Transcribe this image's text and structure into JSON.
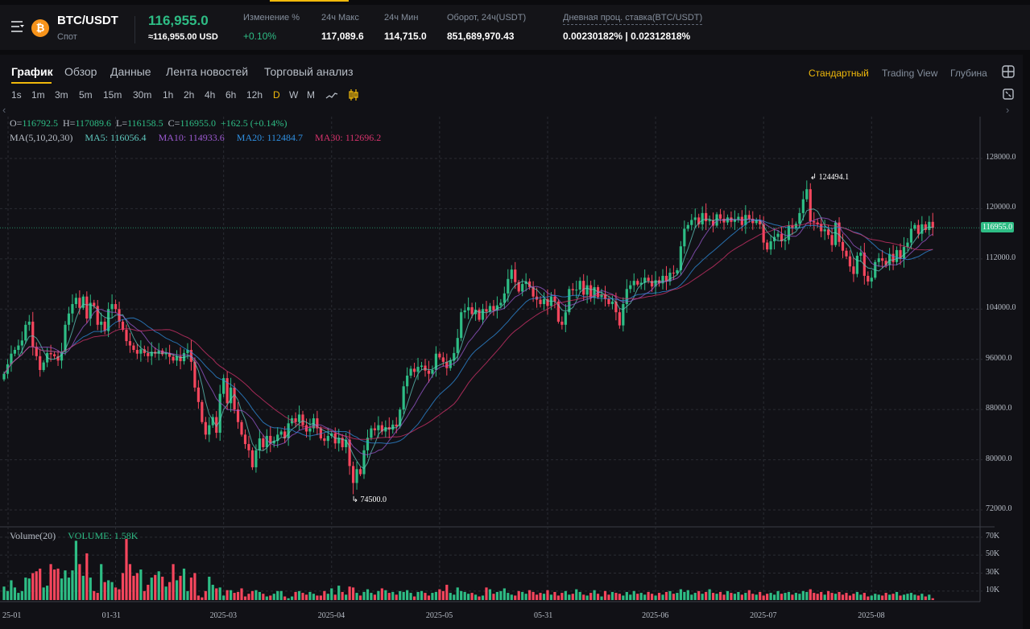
{
  "header": {
    "pair": "BTC/USDT",
    "market": "Спот",
    "last_price": "116,955.0",
    "last_price_usd": "≈116,955.00 USD",
    "stats": [
      {
        "label": "Изменение %",
        "value": "+0.10%",
        "positive": true
      },
      {
        "label": "24ч Макс",
        "value": "117,089.6"
      },
      {
        "label": "24ч Мин",
        "value": "114,715.0"
      },
      {
        "label": "Оборот, 24ч(USDT)",
        "value": "851,689,970.43"
      },
      {
        "label": "Дневная проц. ставка(BTC/USDT)",
        "value": "0.00230182% | 0.02312818%"
      }
    ]
  },
  "tabs": [
    "График",
    "Обзор",
    "Данные",
    "Лента новостей",
    "Торговый анализ"
  ],
  "active_tab": "График",
  "views": [
    "Стандартный",
    "Trading View",
    "Глубина"
  ],
  "active_view": "Стандартный",
  "timeframes": [
    "1s",
    "1m",
    "3m",
    "5m",
    "15m",
    "30m",
    "1h",
    "2h",
    "4h",
    "6h",
    "12h",
    "D",
    "W",
    "M"
  ],
  "active_timeframe": "D",
  "legend": {
    "ohlc": {
      "O": "116792.5",
      "H": "117089.6",
      "L": "116158.5",
      "C": "116955.0",
      "change": "+162.5 (+0.14%)"
    },
    "ma_title": "MA(5,10,20,30)",
    "ma": [
      {
        "label": "MA5: 116056.4",
        "color": "#5fc9bf"
      },
      {
        "label": "MA10: 114933.6",
        "color": "#9b59d0"
      },
      {
        "label": "MA20: 112484.7",
        "color": "#2f8fe0"
      },
      {
        "label": "MA30: 112696.2",
        "color": "#d6336c"
      }
    ],
    "volume_title": "Volume(20)",
    "volume_value": "VOLUME: 1.58K"
  },
  "chart_data": {
    "type": "candlestick",
    "price_ticks": [
      "128000.0",
      "120000.0",
      "112000.0",
      "104000.0",
      "96000.0",
      "88000.0",
      "80000.0",
      "72000.0"
    ],
    "ylim": [
      72000,
      128000
    ],
    "volume_ticks": [
      "70K",
      "50K",
      "30K",
      "10K"
    ],
    "x_labels": [
      "25-01",
      "01-31",
      "2025-03",
      "2025-04",
      "2025-05",
      "05-31",
      "2025-06",
      "2025-07",
      "2025-08"
    ],
    "current_price": "116955.0",
    "max_label": "124494.1",
    "min_label": "74500.0",
    "max_index": 223,
    "min_index": 97,
    "up_color": "#2ebd85",
    "down_color": "#f6465d",
    "closes_k": [
      93.7,
      95.2,
      96.9,
      97.5,
      98.2,
      99.0,
      101.5,
      102.0,
      98.0,
      96.5,
      94.3,
      95.5,
      97.0,
      96.8,
      96.5,
      95.8,
      97.2,
      101.5,
      103.3,
      104.8,
      105.8,
      104.2,
      106.0,
      102.5,
      105.0,
      104.5,
      101.5,
      102.0,
      100.5,
      104.0,
      104.8,
      104.0,
      102.0,
      100.7,
      98.9,
      98.2,
      97.5,
      96.9,
      97.6,
      97.0,
      96.5,
      97.2,
      96.9,
      97.4,
      96.8,
      97.0,
      96.4,
      95.8,
      96.5,
      95.7,
      97.0,
      97.5,
      95.6,
      91.5,
      89.2,
      86.0,
      84.0,
      85.5,
      86.8,
      84.3,
      90.5,
      93.0,
      89.0,
      91.5,
      88.0,
      86.0,
      84.0,
      82.5,
      81.5,
      78.8,
      81.5,
      83.4,
      82.0,
      83.8,
      82.6,
      83.0,
      84.0,
      84.5,
      83.4,
      85.8,
      86.6,
      86.0,
      87.2,
      85.5,
      84.5,
      85.0,
      86.6,
      85.0,
      83.4,
      83.0,
      83.8,
      84.2,
      82.6,
      83.5,
      82.0,
      83.2,
      79.0,
      76.3,
      78.5,
      77.7,
      81.5,
      83.5,
      85.0,
      84.7,
      85.5,
      84.5,
      85.2,
      84.8,
      85.6,
      85.3,
      88.0,
      91.7,
      93.4,
      94.5,
      94.0,
      94.8,
      95.0,
      94.2,
      93.7,
      94.3,
      96.9,
      96.3,
      95.6,
      94.6,
      95.8,
      97.0,
      99.4,
      103.5,
      103.8,
      104.3,
      103.2,
      103.9,
      102.3,
      104.0,
      103.6,
      104.5,
      103.8,
      104.6,
      105.0,
      106.5,
      108.8,
      110.3,
      108.3,
      106.8,
      108.0,
      108.4,
      107.5,
      106.0,
      105.5,
      104.8,
      105.6,
      104.5,
      106.0,
      105.2,
      102.0,
      101.5,
      103.5,
      107.2,
      107.0,
      107.1,
      108.5,
      106.3,
      107.8,
      105.8,
      107.5,
      105.9,
      106.4,
      105.6,
      104.8,
      105.2,
      103.5,
      101.4,
      104.8,
      107.2,
      107.8,
      108.5,
      107.9,
      108.2,
      109.0,
      108.5,
      107.6,
      108.6,
      108.1,
      109.3,
      108.4,
      109.8,
      109.7,
      110.2,
      114.0,
      116.8,
      117.4,
      118.2,
      118.6,
      117.5,
      119.3,
      118.0,
      118.2,
      117.3,
      119.1,
      118.4,
      117.8,
      118.6,
      117.9,
      118.3,
      118.7,
      117.4,
      119.0,
      118.4,
      117.7,
      118.2,
      117.5,
      114.6,
      113.5,
      114.8,
      115.5,
      116.0,
      114.8,
      115.0,
      117.3,
      116.9,
      117.6,
      119.3,
      121.5,
      123.1,
      118.0,
      117.8,
      117.5,
      116.4,
      116.7,
      115.8,
      114.2,
      117.8,
      114.7,
      113.3,
      112.4,
      110.8,
      109.6,
      112.5,
      113.0,
      109.3,
      108.4,
      109.0,
      111.5,
      112.1,
      111.7,
      111.0,
      112.8,
      111.5,
      113.4,
      112.0,
      113.9,
      114.6,
      116.8,
      117.4,
      116.0,
      117.5,
      116.6,
      117.9,
      116.955
    ],
    "volumes_k": [
      15,
      10,
      22,
      14,
      8,
      10,
      25,
      24,
      30,
      32,
      35,
      14,
      16,
      40,
      34,
      35,
      24,
      33,
      25,
      33,
      66,
      40,
      27,
      52,
      25,
      10,
      8,
      40,
      20,
      22,
      20,
      14,
      12,
      30,
      68,
      40,
      27,
      30,
      34,
      10,
      17,
      25,
      28,
      32,
      26,
      15,
      20,
      40,
      22,
      27,
      35,
      10,
      25,
      30,
      5,
      3,
      10,
      26,
      17,
      13,
      14,
      5,
      11,
      11,
      8,
      9,
      13,
      4,
      7,
      10,
      11,
      9,
      7,
      4,
      5,
      7,
      10,
      10,
      4,
      2,
      4,
      9,
      10,
      8,
      6,
      9,
      7,
      5,
      5,
      10,
      7,
      13,
      6,
      16,
      9,
      6,
      15,
      14,
      8,
      5,
      9,
      12,
      8,
      6,
      10,
      13,
      11,
      8,
      9,
      6,
      10,
      9,
      11,
      8,
      4,
      9,
      10,
      8,
      5,
      8,
      9,
      12,
      10,
      17,
      8,
      6,
      14,
      10,
      9,
      7,
      8,
      6,
      4,
      5,
      14,
      12,
      7,
      9,
      10,
      13,
      8,
      6,
      5,
      10,
      9,
      7,
      11,
      9,
      6,
      8,
      7,
      11,
      6,
      9,
      5,
      8,
      10,
      6,
      7,
      12,
      9,
      6,
      5,
      8,
      11,
      7,
      4,
      10,
      6,
      9,
      8,
      7,
      5,
      9,
      6,
      10,
      7,
      8,
      6,
      9,
      7,
      5,
      8,
      6,
      9,
      10,
      7,
      8,
      12,
      9,
      11,
      6,
      8,
      10,
      7,
      9,
      12,
      8,
      7,
      9,
      6,
      10,
      8,
      7,
      9,
      6,
      8,
      11,
      7,
      6,
      9,
      5,
      7,
      8,
      6,
      10,
      7,
      8,
      9,
      6,
      8,
      7,
      10,
      9,
      12,
      8,
      7,
      9,
      6,
      10,
      8,
      7,
      9,
      6,
      8,
      5,
      7,
      9,
      6,
      8,
      4,
      5,
      7,
      6,
      5,
      8,
      6,
      7,
      9,
      5,
      6,
      7,
      8,
      6,
      5,
      7,
      4,
      6,
      2
    ]
  }
}
